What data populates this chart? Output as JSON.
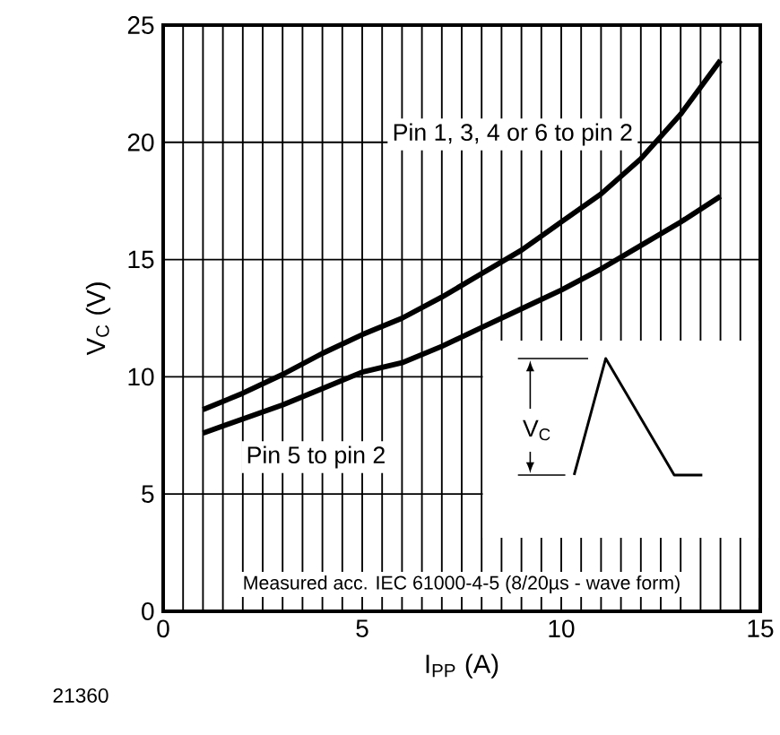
{
  "chart_data": {
    "type": "line",
    "xlabel": "I$_{PP}$ (A)",
    "ylabel": "V$_{C}$ (V)",
    "x": [
      1,
      2,
      3,
      4,
      5,
      6,
      7,
      8,
      9,
      10,
      11,
      12,
      13,
      14
    ],
    "series": [
      {
        "name": "Pin 1, 3, 4 or 6 to pin 2",
        "color": "#000000",
        "values": [
          8.6,
          9.3,
          10.1,
          11.0,
          11.8,
          12.5,
          13.4,
          14.4,
          15.4,
          16.6,
          17.8,
          19.3,
          21.2,
          23.5
        ]
      },
      {
        "name": "Pin 5 to pin 2",
        "color": "#000000",
        "values": [
          7.6,
          8.2,
          8.8,
          9.5,
          10.2,
          10.6,
          11.3,
          12.1,
          12.9,
          13.7,
          14.6,
          15.6,
          16.6,
          17.7
        ]
      }
    ],
    "xlim": [
      0,
      15
    ],
    "ylim": [
      0,
      25
    ],
    "xticks": [
      0,
      {
        "value": 0.5,
        "label": null
      },
      {
        "value": 1,
        "label": null
      },
      {
        "value": 1.5,
        "label": null
      },
      {
        "value": 2,
        "label": null
      },
      {
        "value": 2.5,
        "label": null
      },
      {
        "value": 3,
        "label": null
      },
      {
        "value": 3.5,
        "label": null
      },
      {
        "value": 4,
        "label": null
      },
      {
        "value": 4.5,
        "label": null
      },
      5,
      {
        "value": 5.5,
        "label": null
      },
      {
        "value": 6,
        "label": null
      },
      {
        "value": 6.5,
        "label": null
      },
      {
        "value": 7,
        "label": null
      },
      {
        "value": 7.5,
        "label": null
      },
      {
        "value": 8,
        "label": null
      },
      {
        "value": 8.5,
        "label": null
      },
      {
        "value": 9,
        "label": null
      },
      {
        "value": 9.5,
        "label": null
      },
      10,
      {
        "value": 10.5,
        "label": null
      },
      {
        "value": 11,
        "label": null
      },
      {
        "value": 11.5,
        "label": null
      },
      {
        "value": 12,
        "label": null
      },
      {
        "value": 12.5,
        "label": null
      },
      {
        "value": 13,
        "label": null
      },
      {
        "value": 13.5,
        "label": null
      },
      {
        "value": 14,
        "label": null
      },
      {
        "value": 14.5,
        "label": null
      },
      15
    ],
    "yticks": [
      0,
      5,
      10,
      15,
      20,
      25
    ],
    "grid": true,
    "annotations": [
      "Measured acc. IEC 61000-4-5 (8/20µs - wave form)",
      "V$_{C}$",
      "21360"
    ]
  }
}
